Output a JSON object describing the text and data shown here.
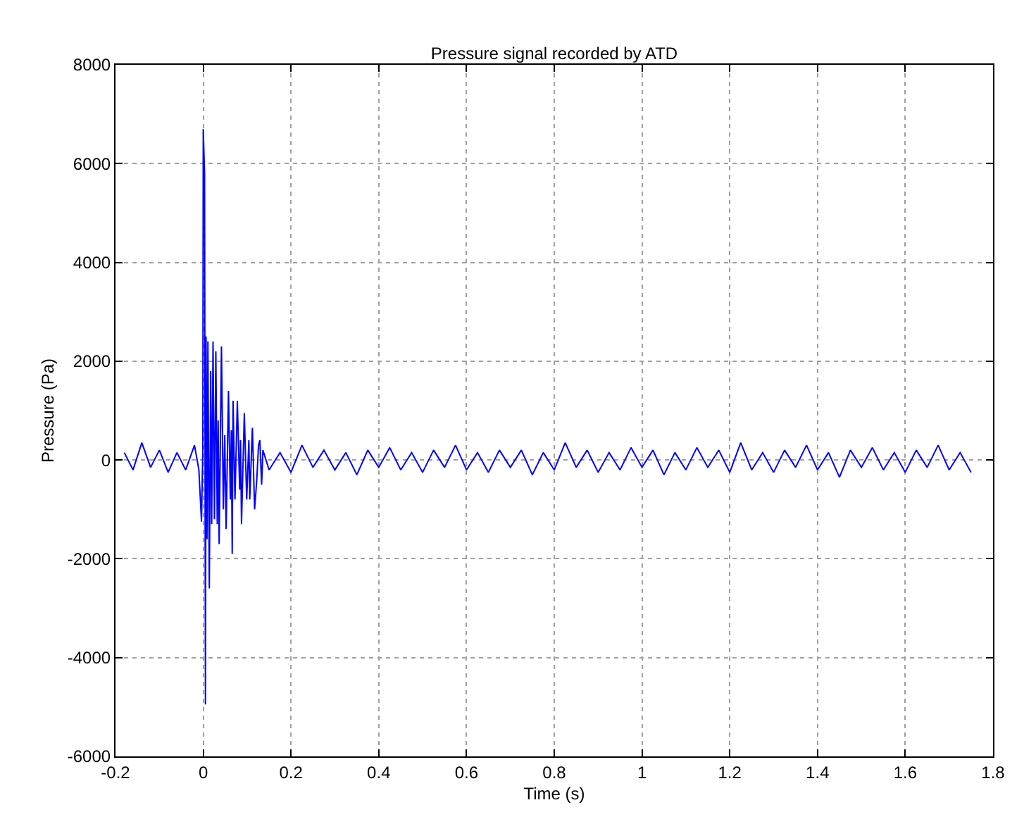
{
  "chart_data": {
    "type": "line",
    "title": "Pressure signal recorded by ATD",
    "xlabel": "Time (s)",
    "ylabel": "Pressure (Pa)",
    "xlim": [
      -0.2,
      1.8
    ],
    "xticks": [
      -0.2,
      0,
      0.2,
      0.4,
      0.6,
      0.8,
      1,
      1.2,
      1.4,
      1.6,
      1.8
    ],
    "ylim": [
      -6000,
      8000
    ],
    "yticks": [
      -6000,
      -4000,
      -2000,
      0,
      2000,
      4000,
      6000,
      8000
    ],
    "grid": true,
    "line_style": "solid",
    "marker": "none",
    "series": [
      {
        "color": "#0000ff",
        "x": [
          -0.18,
          -0.16,
          -0.14,
          -0.12,
          -0.1,
          -0.08,
          -0.06,
          -0.04,
          -0.02,
          -0.01,
          -0.004,
          -0.001,
          0.0,
          0.003,
          0.005,
          0.0064,
          0.0085,
          0.0106,
          0.0138,
          0.017,
          0.0192,
          0.0223,
          0.0255,
          0.0287,
          0.0319,
          0.034,
          0.0362,
          0.0415,
          0.0458,
          0.049,
          0.0521,
          0.0575,
          0.0617,
          0.064,
          0.066,
          0.068,
          0.0723,
          0.0777,
          0.083,
          0.085,
          0.0872,
          0.0936,
          0.099,
          0.104,
          0.106,
          0.112,
          0.117,
          0.122,
          0.126,
          0.129,
          0.133,
          0.136,
          0.15,
          0.175,
          0.2,
          0.225,
          0.25,
          0.275,
          0.3,
          0.325,
          0.35,
          0.375,
          0.4,
          0.425,
          0.45,
          0.475,
          0.5,
          0.525,
          0.55,
          0.575,
          0.6,
          0.625,
          0.65,
          0.675,
          0.7,
          0.725,
          0.75,
          0.775,
          0.8,
          0.825,
          0.85,
          0.875,
          0.9,
          0.925,
          0.95,
          0.975,
          1.0,
          1.025,
          1.05,
          1.075,
          1.1,
          1.125,
          1.15,
          1.175,
          1.2,
          1.225,
          1.25,
          1.275,
          1.3,
          1.325,
          1.35,
          1.375,
          1.4,
          1.425,
          1.45,
          1.475,
          1.5,
          1.525,
          1.55,
          1.575,
          1.6,
          1.625,
          1.65,
          1.675,
          1.7,
          1.725,
          1.75
        ],
        "values": [
          150,
          -200,
          350,
          -150,
          200,
          -250,
          150,
          -200,
          300,
          -200,
          -1250,
          200,
          6700,
          5800,
          -4950,
          2500,
          -1600,
          2400,
          -2600,
          1800,
          -1300,
          2400,
          -1200,
          2200,
          -1300,
          800,
          -1700,
          2300,
          -1000,
          500,
          -1400,
          1400,
          -800,
          600,
          -1900,
          1200,
          -800,
          1200,
          -600,
          400,
          -1300,
          950,
          -800,
          400,
          -800,
          650,
          -1000,
          -400,
          300,
          400,
          -500,
          200,
          -200,
          150,
          -250,
          300,
          -150,
          200,
          -200,
          150,
          -300,
          200,
          -150,
          250,
          -200,
          150,
          -250,
          200,
          -150,
          300,
          -200,
          150,
          -250,
          200,
          -150,
          200,
          -300,
          150,
          -200,
          350,
          -150,
          200,
          -250,
          150,
          -200,
          250,
          -150,
          200,
          -300,
          150,
          -200,
          250,
          -150,
          200,
          -250,
          350,
          -200,
          150,
          -250,
          200,
          -150,
          300,
          -200,
          150,
          -350,
          200,
          -150,
          250,
          -200,
          150,
          -250,
          200,
          -150,
          300,
          -200,
          150,
          -250
        ]
      }
    ]
  }
}
